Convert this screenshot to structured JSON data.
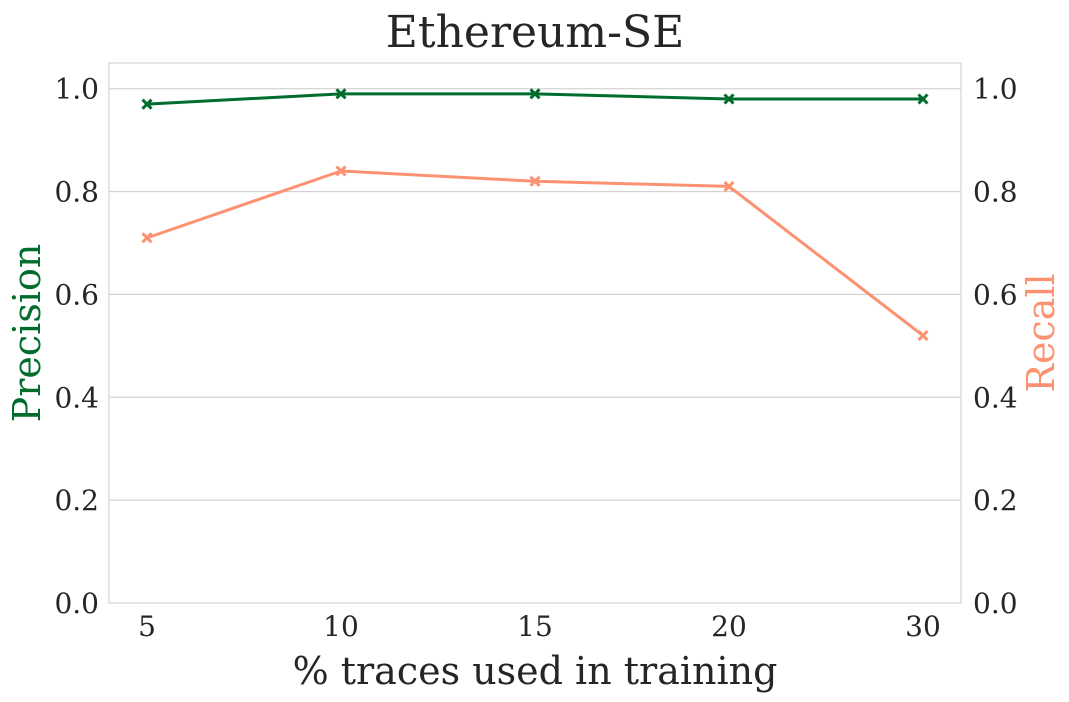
{
  "chart_data": {
    "type": "line",
    "title": "Ethereum-SE",
    "xlabel": "% traces used in training",
    "ylabel_left": "Precision",
    "ylabel_right": "Recall",
    "categories": [
      "5",
      "10",
      "15",
      "20",
      "30"
    ],
    "ylim": [
      0,
      1.05
    ],
    "yticks": [
      "0.0",
      "0.2",
      "0.4",
      "0.6",
      "0.8",
      "1.0"
    ],
    "grid": true,
    "marker": "x",
    "series": [
      {
        "name": "Precision",
        "axis": "left",
        "color": "#006d2c",
        "values": [
          0.97,
          0.99,
          0.99,
          0.98,
          0.98
        ]
      },
      {
        "name": "Recall",
        "axis": "right",
        "color": "#fc9272",
        "values": [
          0.71,
          0.84,
          0.82,
          0.81,
          0.52
        ]
      }
    ]
  }
}
